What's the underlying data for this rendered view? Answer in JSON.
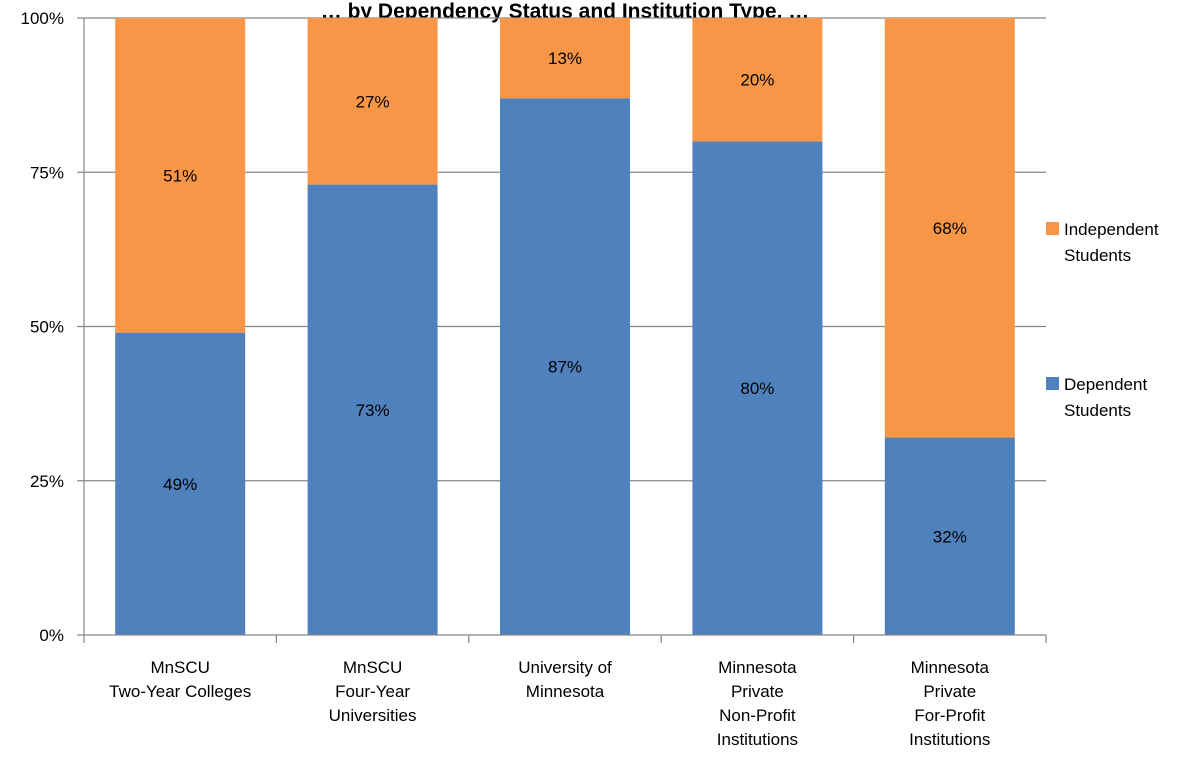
{
  "chart_data": {
    "type": "bar",
    "stacked": true,
    "title": "… by Dependency Status and Institution Type, …",
    "categories": [
      [
        "MnSCU",
        "Two-Year Colleges"
      ],
      [
        "MnSCU",
        "Four-Year",
        "Universities"
      ],
      [
        "University of",
        "Minnesota"
      ],
      [
        "Minnesota",
        "Private",
        "Non-Profit",
        "Institutions"
      ],
      [
        "Minnesota",
        "Private",
        "For-Profit",
        "Institutions"
      ]
    ],
    "series": [
      {
        "name": "Dependent Students",
        "name_lines": [
          "Dependent",
          "Students"
        ],
        "color": "#4F81BD",
        "values": [
          49,
          73,
          87,
          80,
          32
        ]
      },
      {
        "name": "Independent Students",
        "name_lines": [
          "Independent",
          "Students"
        ],
        "color": "#F79646",
        "values": [
          51,
          27,
          13,
          20,
          68
        ]
      }
    ],
    "value_suffix": "%",
    "ylim": [
      0,
      100
    ],
    "yticks": [
      0,
      25,
      50,
      75,
      100
    ],
    "ytick_labels": [
      "0%",
      "25%",
      "50%",
      "75%",
      "100%"
    ],
    "grid": true,
    "legend_position": "right"
  }
}
